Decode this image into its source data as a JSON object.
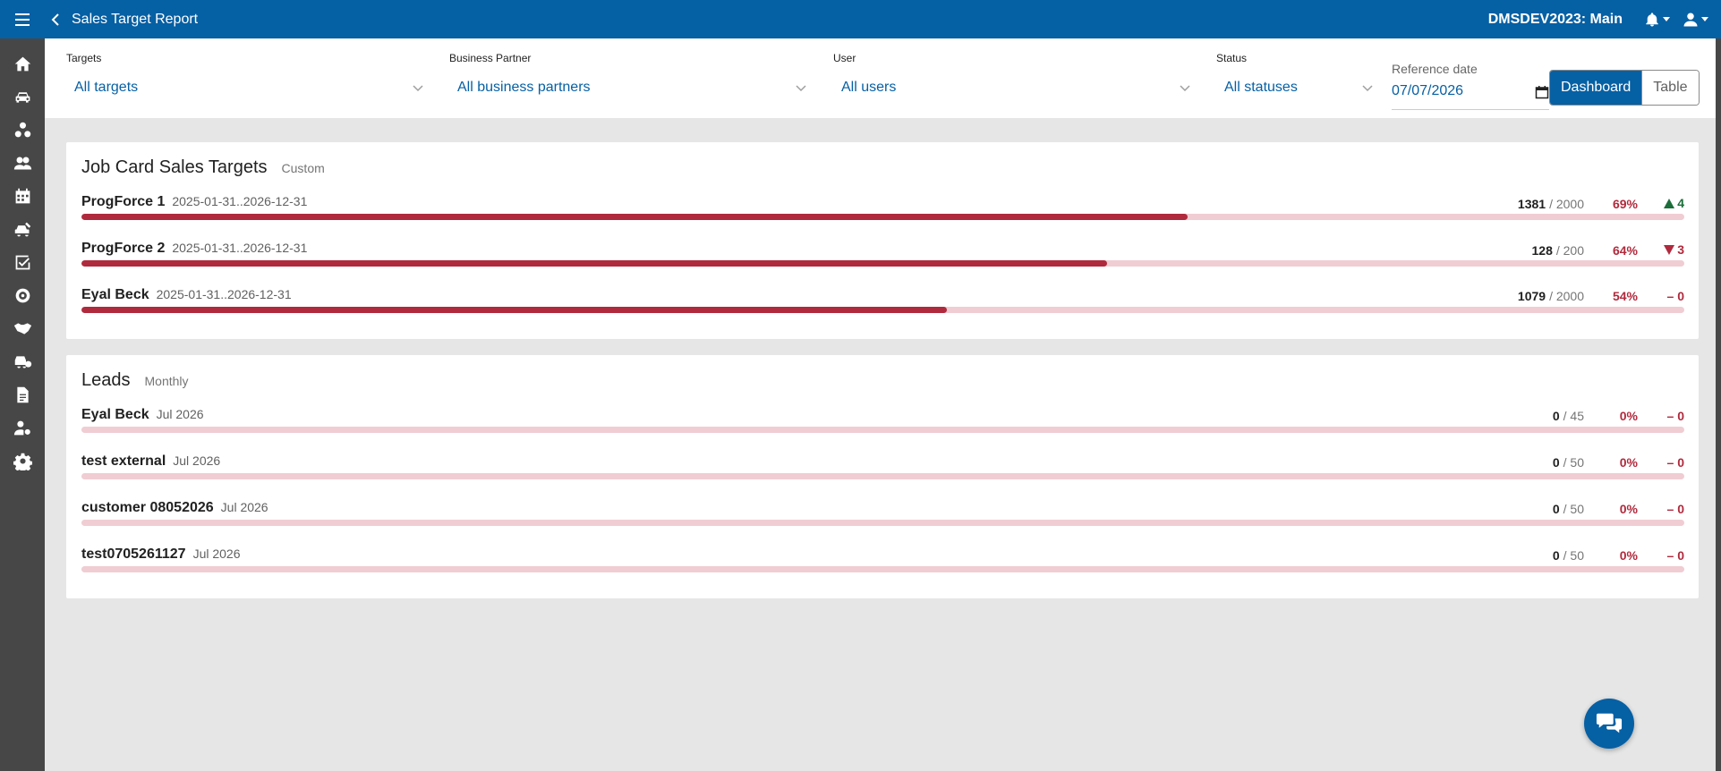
{
  "header": {
    "title": "Sales Target Report",
    "environment": "DMSDEV2023: Main",
    "icons": [
      "hamburger-menu-icon",
      "back-chevron-icon",
      "bell-icon",
      "user-icon"
    ]
  },
  "sidebar": {
    "items": [
      {
        "icon": "home-icon"
      },
      {
        "icon": "car-icon"
      },
      {
        "icon": "parts-icon"
      },
      {
        "icon": "customers-icon"
      },
      {
        "icon": "calendar-icon"
      },
      {
        "icon": "service-car-icon"
      },
      {
        "icon": "task-check-icon"
      },
      {
        "icon": "tire-icon"
      },
      {
        "icon": "handshake-icon"
      },
      {
        "icon": "fleet-icon"
      },
      {
        "icon": "document-icon"
      },
      {
        "icon": "user-settings-icon"
      },
      {
        "icon": "gear-icon"
      }
    ]
  },
  "filters": {
    "targets": {
      "label": "Targets",
      "value": "All targets"
    },
    "business_partner": {
      "label": "Business Partner",
      "value": "All business partners"
    },
    "user": {
      "label": "User",
      "value": "All users"
    },
    "status": {
      "label": "Status",
      "value": "All statuses"
    },
    "reference_date": {
      "label": "Reference date",
      "value": "07/07/2026"
    },
    "view_toggle": {
      "dashboard": "Dashboard",
      "table": "Table",
      "selected": "Dashboard"
    }
  },
  "cards": [
    {
      "title": "Job Card Sales Targets",
      "subtitle": "Custom",
      "rows": [
        {
          "name": "ProgForce 1",
          "period": "2025-01-31..2026-12-31",
          "value": "1381",
          "target": "/ 2000",
          "percent": "69%",
          "trend": "4",
          "trend_dir": "up",
          "progress": 0.69
        },
        {
          "name": "ProgForce 2",
          "period": "2025-01-31..2026-12-31",
          "value": "128",
          "target": "/ 200",
          "percent": "64%",
          "trend": "3",
          "trend_dir": "down",
          "progress": 0.64
        },
        {
          "name": "Eyal Beck",
          "period": "2025-01-31..2026-12-31",
          "value": "1079",
          "target": "/ 2000",
          "percent": "54%",
          "trend": "– 0",
          "trend_dir": "flat",
          "progress": 0.54
        }
      ]
    },
    {
      "title": "Leads",
      "subtitle": "Monthly",
      "rows": [
        {
          "name": "Eyal Beck",
          "period": "Jul 2026",
          "value": "0",
          "target": "/ 45",
          "percent": "0%",
          "trend": "– 0",
          "trend_dir": "flat",
          "progress": 0
        },
        {
          "name": "test external",
          "period": "Jul 2026",
          "value": "0",
          "target": "/ 50",
          "percent": "0%",
          "trend": "– 0",
          "trend_dir": "flat",
          "progress": 0
        },
        {
          "name": "customer 08052026",
          "period": "Jul 2026",
          "value": "0",
          "target": "/ 50",
          "percent": "0%",
          "trend": "– 0",
          "trend_dir": "flat",
          "progress": 0
        },
        {
          "name": "test0705261127",
          "period": "Jul 2026",
          "value": "0",
          "target": "/ 50",
          "percent": "0%",
          "trend": "– 0",
          "trend_dir": "flat",
          "progress": 0
        }
      ]
    }
  ],
  "colors": {
    "brand": "#0660a4",
    "sidebar": "#474747",
    "progress_fill": "#b02a3d",
    "progress_track": "#f0cdd3",
    "trend_up": "#1b6e3a",
    "trend_down": "#b02a3d"
  },
  "fab": {
    "icon": "chat-icon"
  }
}
